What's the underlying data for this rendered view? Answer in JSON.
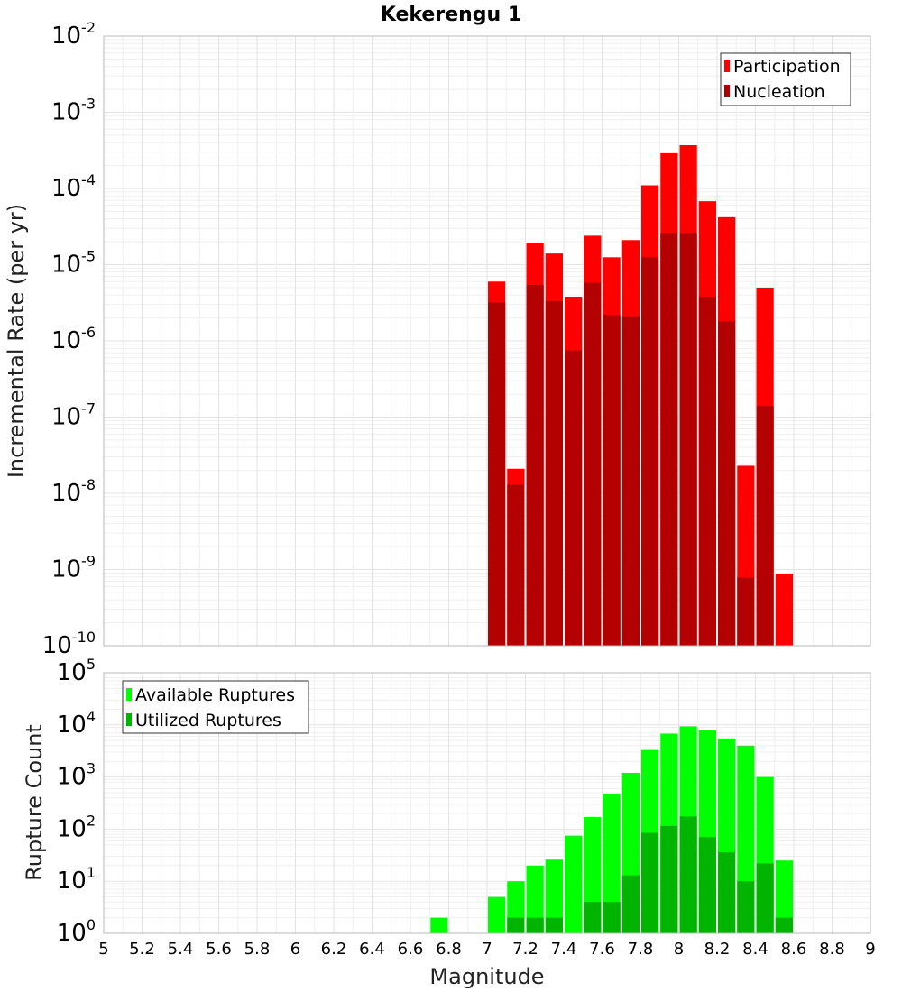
{
  "title": "Kekerengu 1",
  "xlabel": "Magnitude",
  "colors": {
    "participation": "#ff0000",
    "nucleation": "#b30000",
    "available": "#00ff00",
    "utilized": "#00b400"
  },
  "chart_data": [
    {
      "type": "bar",
      "name": "rate-chart",
      "ylabel": "Incremental Rate (per yr)",
      "yscale": "log",
      "ylim_exp": [
        -10,
        -2
      ],
      "xlim": [
        5,
        9
      ],
      "bin_width": 0.1,
      "legend_position": "top-right",
      "series": [
        {
          "name": "Participation",
          "x": [
            7.05,
            7.15,
            7.25,
            7.35,
            7.45,
            7.55,
            7.65,
            7.75,
            7.85,
            7.95,
            8.05,
            8.15,
            8.25,
            8.35,
            8.45,
            8.55
          ],
          "values": [
            6e-06,
            2.1e-08,
            1.9e-05,
            1.4e-05,
            3.8e-06,
            2.4e-05,
            1.25e-05,
            2.1e-05,
            0.00011,
            0.00029,
            0.00037,
            6.8e-05,
            4.2e-05,
            2.3e-08,
            5e-06,
            8.8e-10
          ]
        },
        {
          "name": "Nucleation",
          "x": [
            7.05,
            7.15,
            7.25,
            7.35,
            7.45,
            7.55,
            7.65,
            7.75,
            7.85,
            7.95,
            8.05,
            8.15,
            8.25,
            8.35,
            8.45
          ],
          "values": [
            3.2e-06,
            1.3e-08,
            5.4e-06,
            3.3e-06,
            7.5e-07,
            5.8e-06,
            2.2e-06,
            2.1e-06,
            1.25e-05,
            2.6e-05,
            2.6e-05,
            3.8e-06,
            1.8e-06,
            7.8e-10,
            1.4e-07
          ]
        }
      ]
    },
    {
      "type": "bar",
      "name": "count-chart",
      "ylabel": "Rupture Count",
      "yscale": "log",
      "ylim_exp": [
        0,
        5
      ],
      "xlim": [
        5,
        9
      ],
      "bin_width": 0.1,
      "legend_position": "top-left",
      "xticks": [
        "5",
        "5.2",
        "5.4",
        "5.6",
        "5.8",
        "6",
        "6.2",
        "6.4",
        "6.6",
        "6.8",
        "7",
        "7.2",
        "7.4",
        "7.6",
        "7.8",
        "8",
        "8.2",
        "8.4",
        "8.6",
        "8.8",
        "9"
      ],
      "series": [
        {
          "name": "Available Ruptures",
          "x": [
            6.75,
            6.95,
            7.05,
            7.15,
            7.25,
            7.35,
            7.45,
            7.55,
            7.65,
            7.75,
            7.85,
            7.95,
            8.05,
            8.15,
            8.25,
            8.35,
            8.45,
            8.55
          ],
          "values": [
            2,
            1,
            5,
            10,
            20,
            26,
            75,
            170,
            480,
            1200,
            3300,
            6800,
            9400,
            7800,
            5500,
            4000,
            1000,
            25
          ]
        },
        {
          "name": "Utilized Ruptures",
          "x": [
            7.05,
            7.15,
            7.25,
            7.35,
            7.45,
            7.55,
            7.65,
            7.75,
            7.85,
            7.95,
            8.05,
            8.15,
            8.25,
            8.35,
            8.45,
            8.55
          ],
          "values": [
            1,
            2,
            2,
            2,
            1,
            4,
            4,
            13,
            85,
            115,
            175,
            70,
            36,
            10,
            22,
            2
          ]
        }
      ]
    }
  ]
}
